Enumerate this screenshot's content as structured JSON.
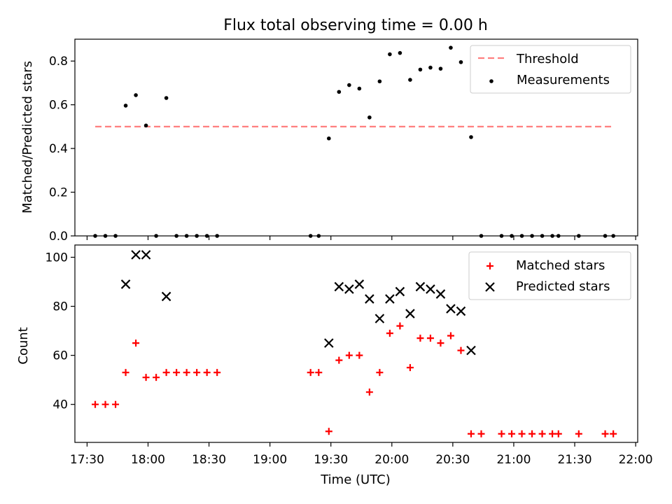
{
  "title": "Flux total observing time = 0.00 h",
  "chart_data": [
    {
      "type": "scatter",
      "ylabel": "Matched/Predicted stars",
      "ylim": [
        0,
        0.9
      ],
      "xlim": [
        "17:24",
        "22:01"
      ],
      "yticks": [
        0.0,
        0.2,
        0.4,
        0.6,
        0.8
      ],
      "ytick_labels": [
        "0.0",
        "0.2",
        "0.4",
        "0.6",
        "0.8"
      ],
      "legend_position": "top-right",
      "threshold": {
        "name": "Threshold",
        "value": 0.5,
        "x_range": [
          "17:34",
          "21:48"
        ],
        "color": "#ff7f7f"
      },
      "series": [
        {
          "name": "Measurements",
          "color": "#000000",
          "points": [
            [
              "17:34",
              0.0
            ],
            [
              "17:39",
              0.0
            ],
            [
              "17:44",
              0.0
            ],
            [
              "17:49",
              0.596
            ],
            [
              "17:54",
              0.644
            ],
            [
              "17:59",
              0.505
            ],
            [
              "18:04",
              0.0
            ],
            [
              "18:09",
              0.631
            ],
            [
              "18:14",
              0.0
            ],
            [
              "18:19",
              0.0
            ],
            [
              "18:24",
              0.0
            ],
            [
              "18:29",
              0.0
            ],
            [
              "18:34",
              0.0
            ],
            [
              "19:20",
              0.0
            ],
            [
              "19:24",
              0.0
            ],
            [
              "19:29",
              0.446
            ],
            [
              "19:34",
              0.659
            ],
            [
              "19:39",
              0.69
            ],
            [
              "19:44",
              0.674
            ],
            [
              "19:49",
              0.542
            ],
            [
              "19:54",
              0.707
            ],
            [
              "19:59",
              0.831
            ],
            [
              "20:04",
              0.837
            ],
            [
              "20:09",
              0.714
            ],
            [
              "20:14",
              0.761
            ],
            [
              "20:19",
              0.77
            ],
            [
              "20:24",
              0.765
            ],
            [
              "20:29",
              0.861
            ],
            [
              "20:34",
              0.795
            ],
            [
              "20:39",
              0.452
            ],
            [
              "20:44",
              0.0
            ],
            [
              "20:54",
              0.0
            ],
            [
              "20:59",
              0.0
            ],
            [
              "21:04",
              0.0
            ],
            [
              "21:09",
              0.0
            ],
            [
              "21:14",
              0.0
            ],
            [
              "21:19",
              0.0
            ],
            [
              "21:22",
              0.0
            ],
            [
              "21:32",
              0.0
            ],
            [
              "21:45",
              0.0
            ],
            [
              "21:49",
              0.0
            ]
          ]
        }
      ]
    },
    {
      "type": "scatter",
      "xlabel": "Time (UTC)",
      "ylabel": "Count",
      "ylim": [
        24.5,
        105
      ],
      "xlim": [
        "17:24",
        "22:01"
      ],
      "yticks": [
        40,
        60,
        80,
        100
      ],
      "ytick_labels": [
        "40",
        "60",
        "80",
        "100"
      ],
      "xticks": [
        "17:30",
        "18:00",
        "18:30",
        "19:00",
        "19:30",
        "20:00",
        "20:30",
        "21:00",
        "21:30",
        "22:00"
      ],
      "legend_position": "top-right",
      "series": [
        {
          "name": "Matched stars",
          "marker": "+",
          "color": "#ff0000",
          "points": [
            [
              "17:34",
              40
            ],
            [
              "17:39",
              40
            ],
            [
              "17:44",
              40
            ],
            [
              "17:49",
              53
            ],
            [
              "17:54",
              65
            ],
            [
              "17:59",
              51
            ],
            [
              "18:04",
              51
            ],
            [
              "18:09",
              53
            ],
            [
              "18:14",
              53
            ],
            [
              "18:19",
              53
            ],
            [
              "18:24",
              53
            ],
            [
              "18:29",
              53
            ],
            [
              "18:34",
              53
            ],
            [
              "19:20",
              53
            ],
            [
              "19:24",
              53
            ],
            [
              "19:29",
              29
            ],
            [
              "19:34",
              58
            ],
            [
              "19:39",
              60
            ],
            [
              "19:44",
              60
            ],
            [
              "19:49",
              45
            ],
            [
              "19:54",
              53
            ],
            [
              "19:59",
              69
            ],
            [
              "20:04",
              72
            ],
            [
              "20:09",
              55
            ],
            [
              "20:14",
              67
            ],
            [
              "20:19",
              67
            ],
            [
              "20:24",
              65
            ],
            [
              "20:29",
              68
            ],
            [
              "20:34",
              62
            ],
            [
              "20:39",
              28
            ],
            [
              "20:44",
              28
            ],
            [
              "20:54",
              28
            ],
            [
              "20:59",
              28
            ],
            [
              "21:04",
              28
            ],
            [
              "21:09",
              28
            ],
            [
              "21:14",
              28
            ],
            [
              "21:19",
              28
            ],
            [
              "21:22",
              28
            ],
            [
              "21:32",
              28
            ],
            [
              "21:45",
              28
            ],
            [
              "21:49",
              28
            ]
          ]
        },
        {
          "name": "Predicted stars",
          "marker": "x",
          "color": "#000000",
          "points": [
            [
              "17:49",
              89
            ],
            [
              "17:54",
              101
            ],
            [
              "17:59",
              101
            ],
            [
              "18:09",
              84
            ],
            [
              "19:29",
              65
            ],
            [
              "19:34",
              88
            ],
            [
              "19:39",
              87
            ],
            [
              "19:44",
              89
            ],
            [
              "19:49",
              83
            ],
            [
              "19:54",
              75
            ],
            [
              "19:59",
              83
            ],
            [
              "20:04",
              86
            ],
            [
              "20:09",
              77
            ],
            [
              "20:14",
              88
            ],
            [
              "20:19",
              87
            ],
            [
              "20:24",
              85
            ],
            [
              "20:29",
              79
            ],
            [
              "20:34",
              78
            ],
            [
              "20:39",
              62
            ]
          ]
        }
      ]
    }
  ]
}
